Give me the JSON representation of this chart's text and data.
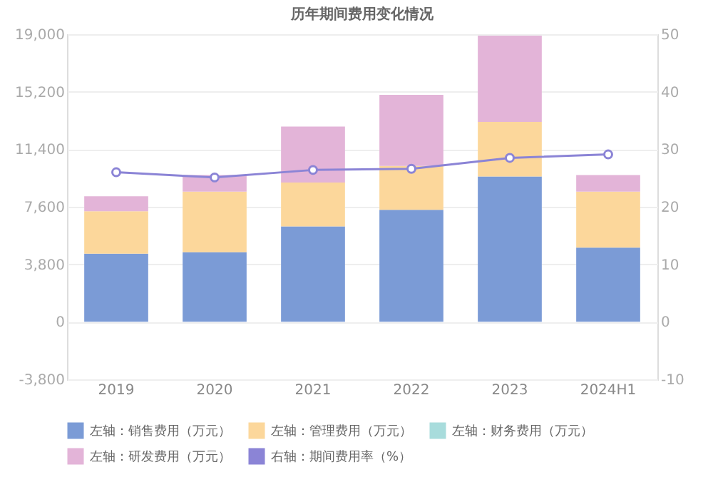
{
  "chart_data": {
    "type": "bar",
    "title": "历年期间费用变化情况",
    "stacked": true,
    "categories": [
      "2019",
      "2020",
      "2021",
      "2022",
      "2023",
      "2024H1"
    ],
    "series": [
      {
        "name": "左轴：销售费用（万元）",
        "color": "#7b9bd6",
        "values": [
          4500,
          4600,
          6300,
          7400,
          9600,
          4900
        ]
      },
      {
        "name": "左轴：管理费用（万元）",
        "color": "#fcd79b",
        "values": [
          2800,
          4000,
          2900,
          2900,
          3600,
          3700
        ]
      },
      {
        "name": "左轴：财务费用（万元）",
        "color": "#a8dcdc",
        "values": [
          null,
          null,
          null,
          null,
          null,
          null
        ]
      },
      {
        "name": "左轴：研发费用（万元）",
        "color": "#e3b4d8",
        "values": [
          1000,
          1100,
          3700,
          4700,
          5700,
          1100
        ]
      },
      {
        "name": "右轴：期间费用率（%）",
        "color": "#8b84d6",
        "type": "line",
        "axis": "y2",
        "marker": "circle",
        "line_style": "solid",
        "values": [
          26.0,
          25.1,
          26.4,
          26.6,
          28.5,
          29.1
        ]
      }
    ],
    "ylim": [
      -3800,
      19000
    ],
    "yticks": [
      {
        "value": -3800,
        "label": "-3,800"
      },
      0,
      {
        "value": 3800,
        "label": "3,800"
      },
      {
        "value": 7600,
        "label": "7,600"
      },
      {
        "value": 11400,
        "label": "11,400"
      },
      {
        "value": 15200,
        "label": "15,200"
      },
      {
        "value": 19000,
        "label": "19,000"
      }
    ],
    "y2lim": [
      -10,
      50
    ],
    "y2ticks": [
      -10,
      0,
      10,
      20,
      30,
      40,
      50
    ],
    "grid": "y",
    "legend": "bottom"
  }
}
